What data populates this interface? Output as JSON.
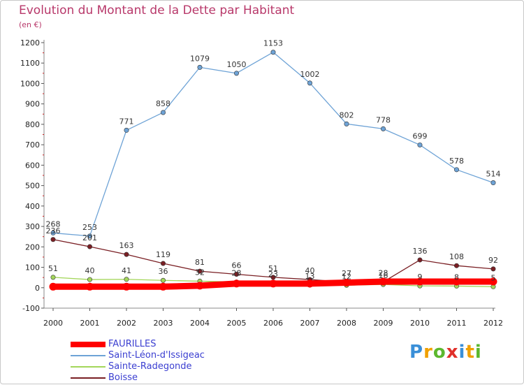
{
  "chart_data": {
    "type": "line",
    "title": "Evolution du Montant de la Dette par Habitant",
    "subtitle": "(en €)",
    "x": [
      "2000",
      "2001",
      "2002",
      "2003",
      "2004",
      "2005",
      "2006",
      "2007",
      "2008",
      "2009",
      "2010",
      "2011",
      "2012"
    ],
    "ylim": [
      -100,
      1200
    ],
    "yticks": [
      -100,
      0,
      100,
      200,
      300,
      400,
      500,
      600,
      700,
      800,
      900,
      1000,
      1100,
      1200
    ],
    "grid": false,
    "legend_position": "bottom-left",
    "series": [
      {
        "name": "FAURILLES",
        "color": "#ff0000",
        "values": [
          5,
          5,
          5,
          5,
          10,
          20,
          20,
          20,
          25,
          30,
          30,
          30,
          30
        ],
        "labels": [
          "",
          "",
          "",
          "",
          "",
          "",
          "",
          "",
          "",
          "",
          "",
          "",
          ""
        ]
      },
      {
        "name": "Saint-Léon-d'Issigeac",
        "color": "#6ea3d6",
        "values": [
          268,
          253,
          771,
          858,
          1079,
          1050,
          1153,
          1002,
          802,
          778,
          699,
          578,
          514
        ],
        "labels": [
          "268",
          "253",
          "771",
          "858",
          "1079",
          "1050",
          "1153",
          "1002",
          "802",
          "778",
          "699",
          "578",
          "514"
        ]
      },
      {
        "name": "Sainte-Radegonde",
        "color": "#a3d65a",
        "values": [
          51,
          40,
          41,
          36,
          32,
          28,
          23,
          13,
          12,
          16,
          9,
          8,
          5
        ],
        "labels": [
          "51",
          "40",
          "41",
          "36",
          "32",
          "28",
          "23",
          "13",
          "12",
          "16",
          "9",
          "8",
          "5"
        ]
      },
      {
        "name": "Boisse",
        "color": "#7a1f24",
        "values": [
          236,
          201,
          163,
          119,
          81,
          66,
          51,
          40,
          27,
          28,
          136,
          108,
          92
        ],
        "labels": [
          "236",
          "201",
          "163",
          "119",
          "81",
          "66",
          "51",
          "40",
          "27",
          "28",
          "136",
          "108",
          "92"
        ]
      }
    ]
  },
  "logo": {
    "letters": [
      "P",
      "r",
      "o",
      "x",
      "i",
      "t",
      "i"
    ],
    "colors": [
      "#3a8fd8",
      "#f0a000",
      "#5cb82e",
      "#e0302a",
      "#3a8fd8",
      "#f0a000",
      "#5cb82e"
    ]
  }
}
